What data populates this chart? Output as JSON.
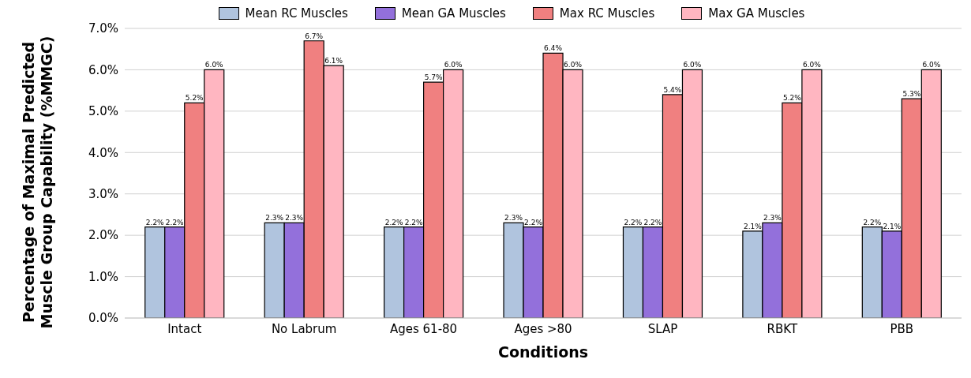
{
  "chart_data": {
    "type": "bar",
    "xlabel": "Conditions",
    "ylabel": "Percentage of Maximal Predicted Muscle Group Capability (%MMGC)",
    "categories": [
      "Intact",
      "No Labrum",
      "Ages 61-80",
      "Ages >80",
      "SLAP",
      "RBKT",
      "PBB"
    ],
    "series": [
      {
        "name": "Mean RC Muscles",
        "color": "#b0c4de",
        "values": [
          2.2,
          2.3,
          2.2,
          2.3,
          2.2,
          2.1,
          2.2
        ],
        "value_labels": [
          "2.2%",
          "2.3%",
          "2.2%",
          "2.3%",
          "2.2%",
          "2.1%",
          "2.2%"
        ]
      },
      {
        "name": "Mean GA Muscles",
        "color": "#9370db",
        "values": [
          2.2,
          2.3,
          2.2,
          2.2,
          2.2,
          2.3,
          2.1
        ],
        "value_labels": [
          "2.2%",
          "2.3%",
          "2.2%",
          "2.2%",
          "2.2%",
          "2.3%",
          "2.1%"
        ]
      },
      {
        "name": "Max RC Muscles",
        "color": "#f08080",
        "values": [
          5.2,
          6.7,
          5.7,
          6.4,
          5.4,
          5.2,
          5.3
        ],
        "value_labels": [
          "5.2%",
          "6.7%",
          "5.7%",
          "6.4%",
          "5.4%",
          "5.2%",
          "5.3%"
        ]
      },
      {
        "name": "Max GA Muscles",
        "color": "#ffb6c1",
        "values": [
          6.0,
          6.1,
          6.0,
          6.0,
          6.0,
          6.0,
          6.0
        ],
        "value_labels": [
          "6.0%",
          "6.1%",
          "6.0%",
          "6.0%",
          "6.0%",
          "6.0%",
          "6.0%"
        ]
      }
    ],
    "ylim": [
      0,
      7
    ],
    "yticks": [
      {
        "value": 0,
        "label": "0.0%"
      },
      {
        "value": 1,
        "label": "1.0%"
      },
      {
        "value": 2,
        "label": "2.0%"
      },
      {
        "value": 3,
        "label": "3.0%"
      },
      {
        "value": 4,
        "label": "4.0%"
      },
      {
        "value": 5,
        "label": "5.0%"
      },
      {
        "value": 6,
        "label": "6.0%"
      },
      {
        "value": 7,
        "label": "7.0%"
      }
    ],
    "grid": "y",
    "legend": "top"
  }
}
